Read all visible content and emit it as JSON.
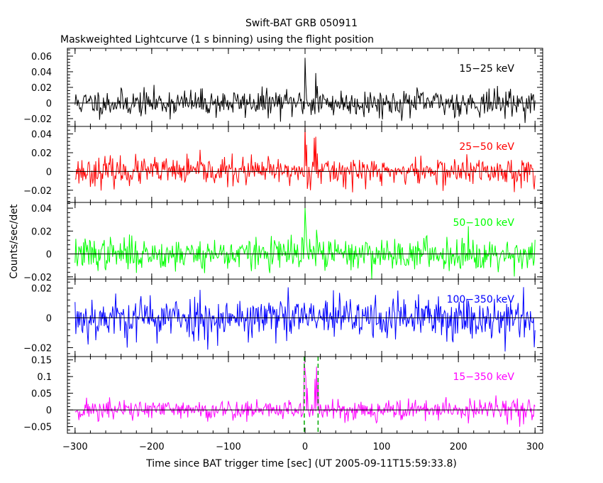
{
  "title": "Swift-BAT GRB 050911",
  "subtitle": "Maskweighted Lightcurve (1 s binning) using the flight position",
  "xlabel": "Time since BAT trigger time [sec] (UT 2005-09-11T15:59:33.8)",
  "ylabel": "Counts/sec/det",
  "colors": {
    "axis": "#000000",
    "zero_line": "#000000",
    "marker": "#00aa00"
  },
  "chart_data": [
    {
      "type": "line",
      "label": "15-25 keV",
      "color": "#000000",
      "xlim": [
        -310,
        310
      ],
      "ylim": [
        -0.03,
        0.07
      ],
      "yticks": [
        -0.02,
        0,
        0.02,
        0.04,
        0.06
      ],
      "ytick_labels": [
        "−0.02",
        "0",
        "0.02",
        "0.04",
        "0.06"
      ],
      "noise_sigma": 0.0085,
      "peaks": [
        [
          0,
          0.058
        ],
        [
          1,
          0.025
        ],
        [
          14,
          0.036
        ],
        [
          16,
          0.02
        ]
      ],
      "seed": 11
    },
    {
      "type": "line",
      "label": "25-50 keV",
      "color": "#ff0000",
      "xlim": [
        -310,
        310
      ],
      "ylim": [
        -0.033,
        0.048
      ],
      "yticks": [
        -0.02,
        0,
        0.02,
        0.04
      ],
      "ytick_labels": [
        "−0.02",
        "0",
        "0.02",
        "0.04"
      ],
      "noise_sigma": 0.0075,
      "peaks": [
        [
          0,
          0.047
        ],
        [
          2,
          0.03
        ],
        [
          12,
          0.035
        ],
        [
          14,
          0.04
        ],
        [
          16,
          0.022
        ]
      ],
      "seed": 23
    },
    {
      "type": "line",
      "label": "50-100 keV",
      "color": "#00ff00",
      "xlim": [
        -310,
        310
      ],
      "ylim": [
        -0.022,
        0.045
      ],
      "yticks": [
        -0.02,
        0,
        0.02,
        0.04
      ],
      "ytick_labels": [
        "−0.02",
        "0",
        "0.02",
        "0.04"
      ],
      "noise_sigma": 0.007,
      "peaks": [
        [
          0,
          0.04
        ],
        [
          1,
          0.028
        ],
        [
          15,
          0.022
        ],
        [
          213,
          0.029
        ]
      ],
      "seed": 37
    },
    {
      "type": "line",
      "label": "100-350 keV",
      "color": "#0000ff",
      "xlim": [
        -310,
        310
      ],
      "ylim": [
        -0.026,
        0.026
      ],
      "yticks": [
        -0.02,
        0,
        0.02
      ],
      "ytick_labels": [
        "−0.02",
        "0",
        "0.02"
      ],
      "noise_sigma": 0.0075,
      "peaks": [],
      "seed": 53
    },
    {
      "type": "line",
      "label": "15-350 keV",
      "color": "#ff00ff",
      "xlim": [
        -310,
        310
      ],
      "ylim": [
        -0.07,
        0.16
      ],
      "yticks": [
        -0.05,
        0,
        0.05,
        0.1,
        0.15
      ],
      "ytick_labels": [
        "−0.05",
        "0",
        "0.05",
        "0.1",
        "0.15"
      ],
      "noise_sigma": 0.016,
      "peaks": [
        [
          -1,
          0.14
        ],
        [
          0,
          0.12
        ],
        [
          1,
          0.1
        ],
        [
          3,
          0.06
        ],
        [
          13,
          0.1
        ],
        [
          15,
          0.13
        ],
        [
          17,
          0.09
        ]
      ],
      "markers": [
        -1,
        17
      ],
      "seed": 71
    }
  ],
  "xaxis": {
    "ticks": [
      -300,
      -200,
      -100,
      0,
      100,
      200,
      300
    ],
    "tick_labels": [
      "−300",
      "−200",
      "−100",
      "0",
      "100",
      "200",
      "300"
    ],
    "minor_step": 20
  }
}
